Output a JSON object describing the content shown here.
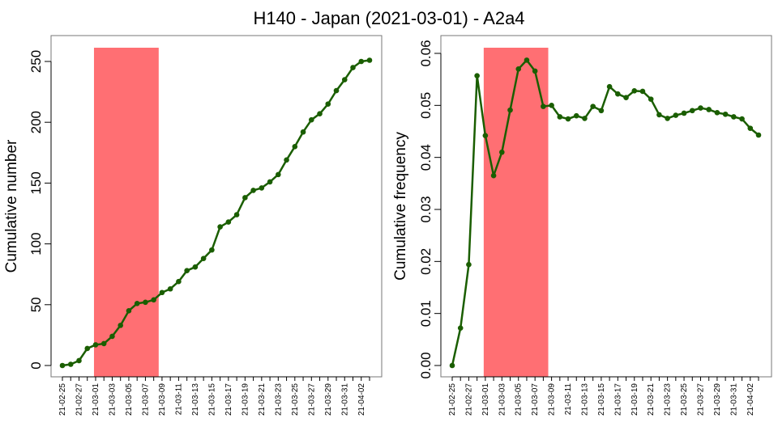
{
  "title": "H140 - Japan (2021-03-01) - A2a4",
  "colors": {
    "line": "#1a5e00",
    "highlight": "#ff6f73",
    "axis": "#000000",
    "frame": "#777777"
  },
  "chart_data": [
    {
      "type": "line",
      "ylabel": "Cumulative number",
      "x": [
        "21-02-25",
        "21-02-26",
        "21-02-27",
        "21-02-28",
        "21-03-01",
        "21-03-02",
        "21-03-03",
        "21-03-04",
        "21-03-05",
        "21-03-06",
        "21-03-07",
        "21-03-08",
        "21-03-09",
        "21-03-10",
        "21-03-11",
        "21-03-12",
        "21-03-13",
        "21-03-14",
        "21-03-15",
        "21-03-16",
        "21-03-17",
        "21-03-18",
        "21-03-19",
        "21-03-20",
        "21-03-21",
        "21-03-22",
        "21-03-23",
        "21-03-24",
        "21-03-25",
        "21-03-26",
        "21-03-27",
        "21-03-28",
        "21-03-29",
        "21-03-30",
        "21-03-31",
        "21-04-01",
        "21-04-02",
        "21-04-03"
      ],
      "x_tick_labels": [
        "21-02-25",
        "21-02-27",
        "21-03-01",
        "21-03-03",
        "21-03-05",
        "21-03-07",
        "21-03-09",
        "21-03-11",
        "21-03-13",
        "21-03-15",
        "21-03-17",
        "21-03-19",
        "21-03-21",
        "21-03-23",
        "21-03-25",
        "21-03-27",
        "21-03-29",
        "21-03-31",
        "21-04-02"
      ],
      "values": [
        0,
        1,
        4,
        14,
        17,
        18,
        24,
        33,
        45,
        51,
        52,
        54,
        60,
        63,
        69,
        78,
        81,
        88,
        95,
        114,
        118,
        124,
        138,
        144,
        146,
        151,
        157,
        169,
        180,
        192,
        202,
        207,
        215,
        226,
        235,
        245,
        250,
        251
      ],
      "y_ticks": [
        0,
        50,
        100,
        150,
        200,
        250
      ],
      "ylim": [
        0,
        251
      ],
      "highlight_range": [
        "21-03-01",
        "21-03-08"
      ]
    },
    {
      "type": "line",
      "ylabel": "Cumulative frequency",
      "x": [
        "21-02-25",
        "21-02-26",
        "21-02-27",
        "21-02-28",
        "21-03-01",
        "21-03-02",
        "21-03-03",
        "21-03-04",
        "21-03-05",
        "21-03-06",
        "21-03-07",
        "21-03-08",
        "21-03-09",
        "21-03-10",
        "21-03-11",
        "21-03-12",
        "21-03-13",
        "21-03-14",
        "21-03-15",
        "21-03-16",
        "21-03-17",
        "21-03-18",
        "21-03-19",
        "21-03-20",
        "21-03-21",
        "21-03-22",
        "21-03-23",
        "21-03-24",
        "21-03-25",
        "21-03-26",
        "21-03-27",
        "21-03-28",
        "21-03-29",
        "21-03-30",
        "21-03-31",
        "21-04-01",
        "21-04-02",
        "21-04-03"
      ],
      "x_tick_labels": [
        "21-02-25",
        "21-02-27",
        "21-03-01",
        "21-03-03",
        "21-03-05",
        "21-03-07",
        "21-03-09",
        "21-03-11",
        "21-03-13",
        "21-03-15",
        "21-03-17",
        "21-03-19",
        "21-03-21",
        "21-03-23",
        "21-03-25",
        "21-03-27",
        "21-03-29",
        "21-03-31",
        "21-04-02"
      ],
      "values": [
        0.0,
        0.0072,
        0.0194,
        0.0557,
        0.0442,
        0.0365,
        0.041,
        0.0491,
        0.057,
        0.0587,
        0.0566,
        0.0498,
        0.05,
        0.0478,
        0.0474,
        0.048,
        0.0475,
        0.0498,
        0.049,
        0.0536,
        0.0522,
        0.0515,
        0.0528,
        0.0527,
        0.0512,
        0.0482,
        0.0475,
        0.0481,
        0.0485,
        0.049,
        0.0495,
        0.0492,
        0.0486,
        0.0483,
        0.0478,
        0.0474,
        0.0456,
        0.0443
      ],
      "y_ticks": [
        "0.00",
        "0.01",
        "0.02",
        "0.03",
        "0.04",
        "0.05",
        "0.06"
      ],
      "ylim": [
        0,
        0.0605
      ],
      "highlight_range": [
        "21-03-01",
        "21-03-08"
      ]
    }
  ]
}
